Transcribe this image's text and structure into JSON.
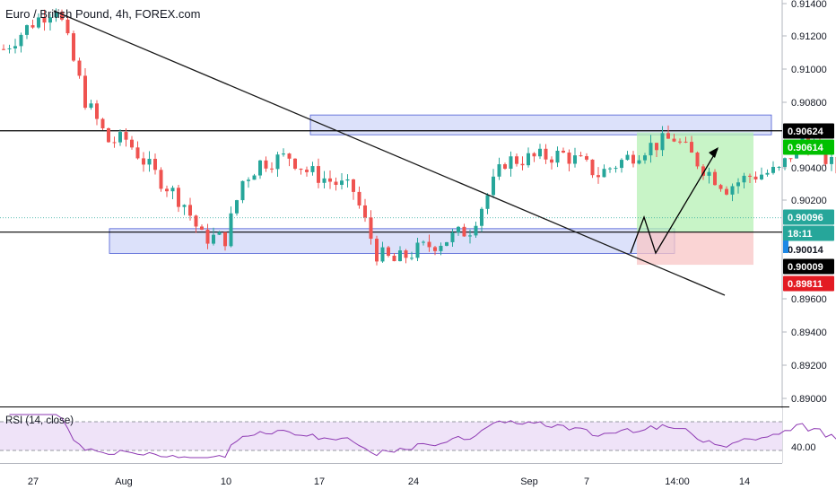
{
  "chart_title": "Euro / British Pound, 4h, FOREX.com",
  "rsi_title": "RSI (14, close)",
  "colors": {
    "up": "#26a69a",
    "down": "#ef5350",
    "zone_fill": "#c5cdf7",
    "zone_stroke": "#4a5bd4",
    "target_zone": "#b6f0b4",
    "stop_zone": "#f8c6c6",
    "rsi_line": "#8e3ab3",
    "rsi_band": "#ede0f7",
    "tag_black": "#000000",
    "tag_green": "#00c000",
    "tag_teal": "#26a69a",
    "tag_red": "#e31b23",
    "tag_blue": "#1e88e5"
  },
  "chart_data": {
    "type": "candlestick",
    "symbol": "EURGBP",
    "timeframe": "4h",
    "y_ticks": [
      "0.91400",
      "0.91200",
      "0.91000",
      "0.90800",
      "0.90400",
      "0.90200",
      "0.89600",
      "0.89400",
      "0.89200",
      "0.89000"
    ],
    "x_ticks": [
      "27",
      "Aug",
      "10",
      "17",
      "24",
      "Sep",
      "7",
      "14:00",
      "14"
    ],
    "rsi_tick": "40.00",
    "price_tags": [
      {
        "label": "0.90624",
        "kind": "black"
      },
      {
        "label": "0.90614",
        "kind": "green"
      },
      {
        "label": "0.90096",
        "kind": "teal"
      },
      {
        "label": "18:11",
        "kind": "teal"
      },
      {
        "label": "0.90014",
        "kind": "grey"
      },
      {
        "label": "0.90009",
        "kind": "black"
      },
      {
        "label": "0.89811",
        "kind": "red"
      }
    ],
    "horizontal_levels": [
      0.90624,
      0.90014
    ],
    "resistance_zone": [
      0.906,
      0.9072
    ],
    "support_zone": [
      0.8988,
      0.9003
    ],
    "target": 0.90614,
    "stop": 0.89811,
    "rsi_band": [
      30,
      70
    ],
    "candles": []
  }
}
